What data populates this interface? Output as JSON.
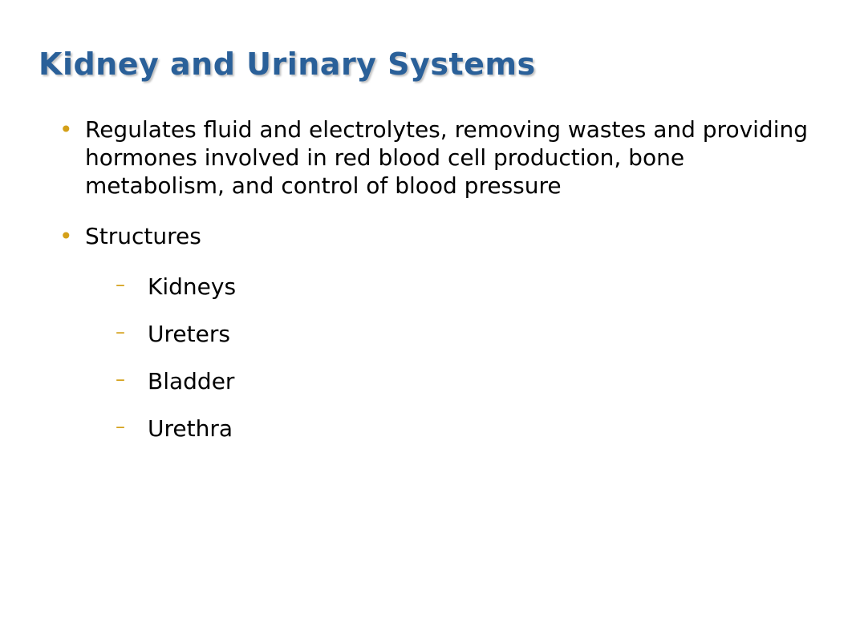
{
  "slide": {
    "title": "Kidney and Urinary Systems",
    "title_color": "#2a6099",
    "title_fontsize": 38,
    "title_fontweight": "bold",
    "background_color": "#ffffff",
    "bullet_color": "#d4a019",
    "text_color": "#000000",
    "body_fontsize": 28,
    "bullets": [
      {
        "text": "Regulates fluid and electrolytes, removing wastes and providing hormones involved in red blood cell production, bone metabolism, and control of blood pressure"
      },
      {
        "text": "Structures",
        "sub_items": [
          "Kidneys",
          "Ureters",
          "Bladder",
          "Urethra"
        ]
      }
    ]
  }
}
